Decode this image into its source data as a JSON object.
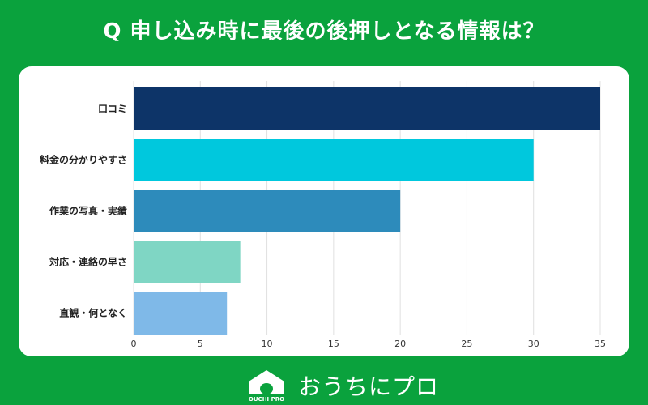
{
  "title": "Q 申し込み時に最後の後押しとなる情報は？",
  "brand": {
    "name": "おうちにプロ",
    "logo_text": "OUCHI PRO",
    "logo_icon": "house-icon"
  },
  "colors": {
    "background": "#0aa23d",
    "card": "#ffffff",
    "grid": "#e0e0e0"
  },
  "chart_data": {
    "type": "bar",
    "orientation": "horizontal",
    "categories": [
      "口コミ",
      "料金の分かりやすさ",
      "作業の写真・実績",
      "対応・連絡の早さ",
      "直観・何となく"
    ],
    "values": [
      35,
      30,
      20,
      8,
      7
    ],
    "colors": [
      "#0d3468",
      "#00c8dd",
      "#2d8bbb",
      "#7fd6c4",
      "#7fb9e8"
    ],
    "xlim": [
      0,
      35
    ],
    "ticks": [
      0,
      5,
      10,
      15,
      20,
      25,
      30,
      35
    ],
    "grid": true,
    "xlabel": "",
    "ylabel": ""
  }
}
